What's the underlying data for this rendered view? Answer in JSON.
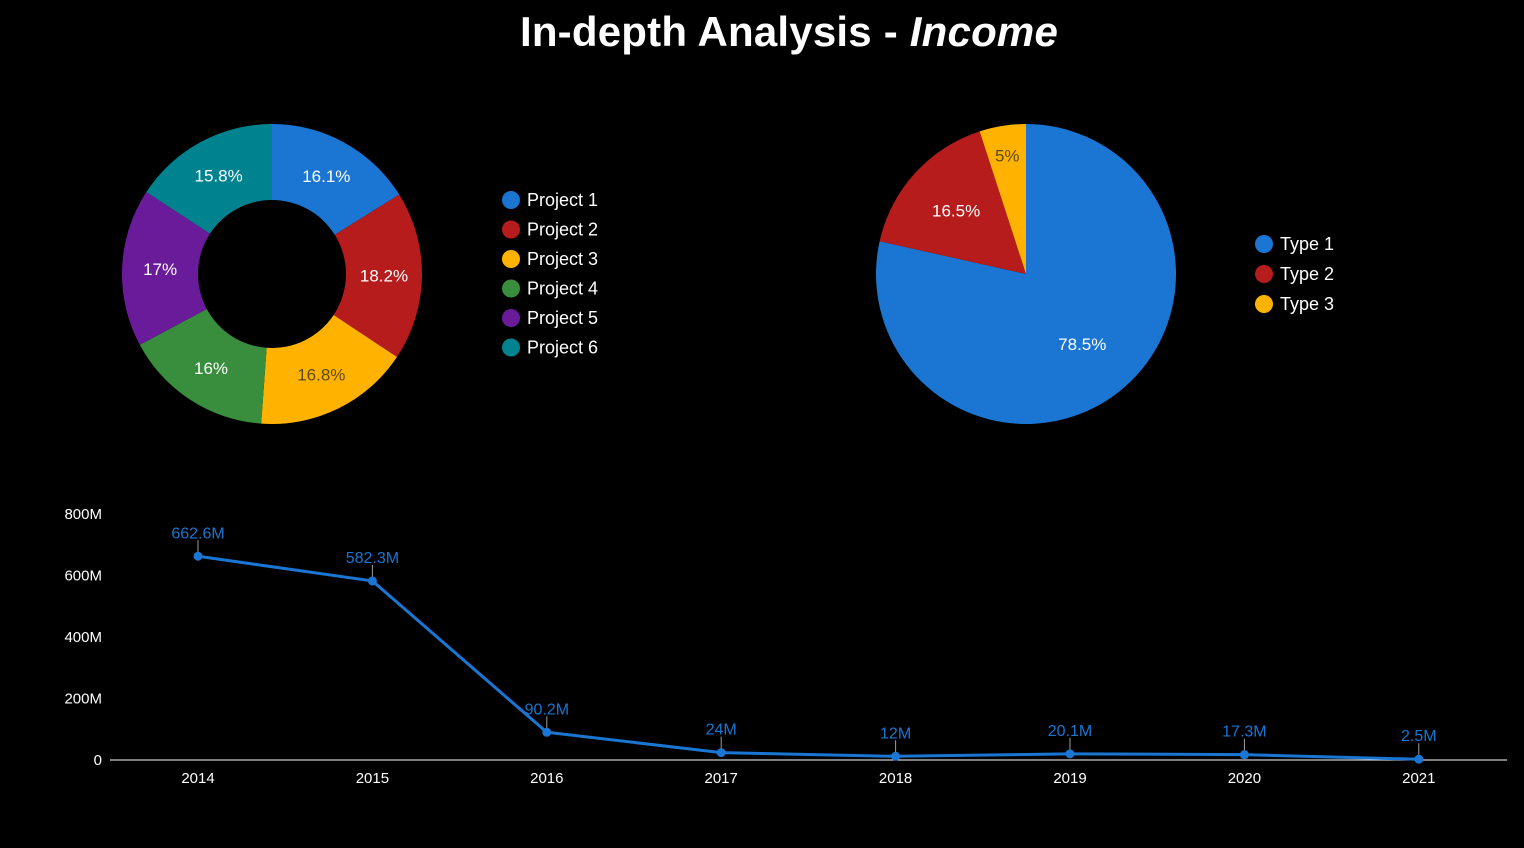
{
  "page": {
    "title_main": "In-depth Analysis - ",
    "title_emphasis": "Income"
  },
  "colors": {
    "background": "#000000",
    "blue": "#1a76d2",
    "red": "#b71c1c",
    "yellow": "#ffb300",
    "green": "#388e3c",
    "purple": "#6a1b9a",
    "teal": "#00838f",
    "axis": "#ffffff"
  },
  "chart_data": [
    {
      "type": "pie",
      "variant": "donut",
      "legend_position": "right",
      "slices": [
        {
          "label": "Project 1",
          "value": 16.1,
          "display": "16.1%",
          "color": "#1a76d2",
          "label_color": "#ffffff"
        },
        {
          "label": "Project 2",
          "value": 18.2,
          "display": "18.2%",
          "color": "#b71c1c",
          "label_color": "#ffffff"
        },
        {
          "label": "Project 3",
          "value": 16.8,
          "display": "16.8%",
          "color": "#ffb300",
          "label_color": "#5a4a1a"
        },
        {
          "label": "Project 4",
          "value": 16.0,
          "display": "16%",
          "color": "#388e3c",
          "label_color": "#ffffff"
        },
        {
          "label": "Project 5",
          "value": 17.0,
          "display": "17%",
          "color": "#6a1b9a",
          "label_color": "#ffffff"
        },
        {
          "label": "Project 6",
          "value": 15.8,
          "display": "15.8%",
          "color": "#00838f",
          "label_color": "#ffffff"
        }
      ]
    },
    {
      "type": "pie",
      "legend_position": "right",
      "slices": [
        {
          "label": "Type 1",
          "value": 78.5,
          "display": "78.5%",
          "color": "#1a76d2",
          "label_color": "#ffffff"
        },
        {
          "label": "Type 2",
          "value": 16.5,
          "display": "16.5%",
          "color": "#b71c1c",
          "label_color": "#ffffff"
        },
        {
          "label": "Type 3",
          "value": 5.0,
          "display": "5%",
          "color": "#ffb300",
          "label_color": "#5a4a1a"
        }
      ]
    },
    {
      "type": "line",
      "x": [
        "2014",
        "2015",
        "2016",
        "2017",
        "2018",
        "2019",
        "2020",
        "2021"
      ],
      "series": [
        {
          "values": [
            662.6,
            582.3,
            90.2,
            24,
            12,
            20.1,
            17.3,
            2.5
          ],
          "labels": [
            "662.6M",
            "582.3M",
            "90.2M",
            "24M",
            "12M",
            "20.1M",
            "17.3M",
            "2.5M"
          ],
          "color": "#1a76d2"
        }
      ],
      "y_ticks": [
        "0",
        "200M",
        "400M",
        "600M",
        "800M"
      ],
      "ylim": [
        0,
        800
      ],
      "grid": false
    }
  ]
}
